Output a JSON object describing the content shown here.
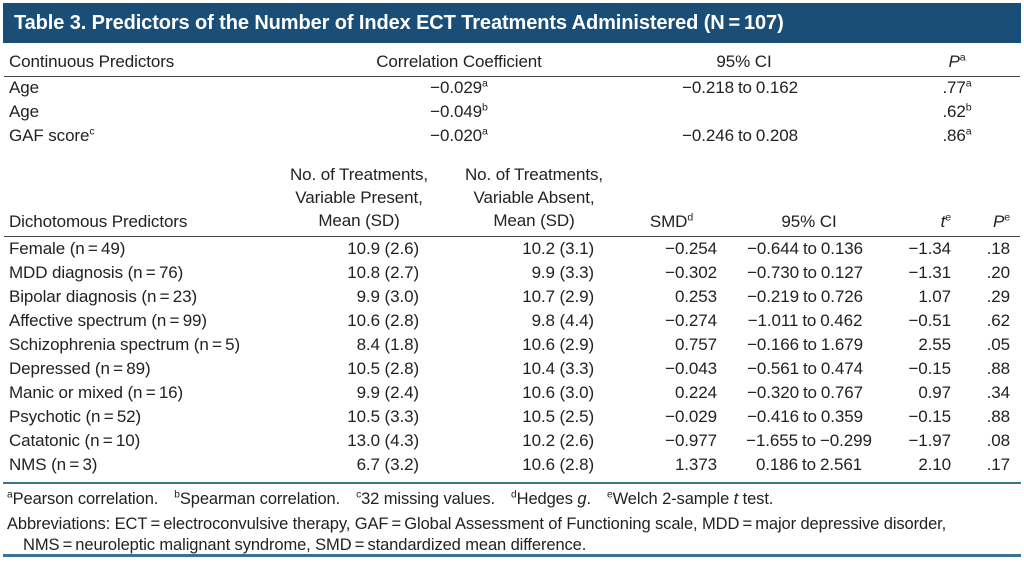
{
  "title": "Table 3. Predictors of the Number of Index ECT Treatments Administered (N = 107)",
  "colors": {
    "title_bg": "#1a4e77",
    "rule_blue": "#3a7391",
    "header_rule": "#454545"
  },
  "continuous": {
    "headers": {
      "predictor": "Continuous Predictors",
      "coef": "Correlation Coefficient",
      "ci": "95% CI",
      "p": "P",
      "p_sup": "a"
    },
    "rows": [
      {
        "predictor": "Age",
        "predictor_sup": "",
        "coef": "−0.029",
        "coef_sup": "a",
        "ci": "−0.218 to 0.162",
        "p": ".77",
        "p_sup": "a"
      },
      {
        "predictor": "Age",
        "predictor_sup": "",
        "coef": "−0.049",
        "coef_sup": "b",
        "ci": "",
        "p": ".62",
        "p_sup": "b"
      },
      {
        "predictor": "GAF score",
        "predictor_sup": "c",
        "coef": "−0.020",
        "coef_sup": "a",
        "ci": "−0.246 to 0.208",
        "p": ".86",
        "p_sup": "a"
      }
    ]
  },
  "dichotomous": {
    "headers": {
      "predictor": "Dichotomous Predictors",
      "present_lines": [
        "No. of Treatments,",
        "Variable Present,",
        "Mean (SD)"
      ],
      "absent_lines": [
        "No. of Treatments,",
        "Variable Absent,",
        "Mean (SD)"
      ],
      "smd": "SMD",
      "smd_sup": "d",
      "ci": "95% CI",
      "t": "t",
      "t_sup": "e",
      "p": "P",
      "p_sup": "e"
    },
    "rows": [
      {
        "predictor": "Female (n = 49)",
        "present": "10.9 (2.6)",
        "absent": "10.2 (3.1)",
        "smd": "−0.254",
        "ci": "−0.644 to 0.136",
        "t": "−1.34",
        "p": ".18"
      },
      {
        "predictor": "MDD diagnosis (n = 76)",
        "present": "10.8 (2.7)",
        "absent": "9.9 (3.3)",
        "smd": "−0.302",
        "ci": "−0.730 to 0.127",
        "t": "−1.31",
        "p": ".20"
      },
      {
        "predictor": "Bipolar diagnosis (n = 23)",
        "present": "9.9 (3.0)",
        "absent": "10.7 (2.9)",
        "smd": "0.253",
        "ci": "−0.219 to 0.726",
        "t": "1.07",
        "p": ".29"
      },
      {
        "predictor": "Affective spectrum (n = 99)",
        "present": "10.6 (2.8)",
        "absent": "9.8 (4.4)",
        "smd": "−0.274",
        "ci": "−1.011 to 0.462",
        "t": "−0.51",
        "p": ".62"
      },
      {
        "predictor": "Schizophrenia spectrum (n = 5)",
        "present": "8.4 (1.8)",
        "absent": "10.6 (2.9)",
        "smd": "0.757",
        "ci": "−0.166 to 1.679",
        "t": "2.55",
        "p": ".05"
      },
      {
        "predictor": "Depressed (n = 89)",
        "present": "10.5 (2.8)",
        "absent": "10.4 (3.3)",
        "smd": "−0.043",
        "ci": "−0.561 to 0.474",
        "t": "−0.15",
        "p": ".88"
      },
      {
        "predictor": "Manic or mixed (n = 16)",
        "present": "9.9 (2.4)",
        "absent": "10.6 (3.0)",
        "smd": "0.224",
        "ci": "−0.320 to 0.767",
        "t": "0.97",
        "p": ".34"
      },
      {
        "predictor": "Psychotic (n = 52)",
        "present": "10.5 (3.3)",
        "absent": "10.5 (2.5)",
        "smd": "−0.029",
        "ci": "−0.416 to 0.359",
        "t": "−0.15",
        "p": ".88"
      },
      {
        "predictor": "Catatonic (n = 10)",
        "present": "13.0 (4.3)",
        "absent": "10.2 (2.6)",
        "smd": "−0.977",
        "ci": "−1.655 to −0.299",
        "t": "−1.97",
        "p": ".08"
      },
      {
        "predictor": "NMS (n = 3)",
        "present": "6.7 (3.2)",
        "absent": "10.6 (2.8)",
        "smd": "1.373",
        "ci": "0.186 to 2.561",
        "t": "2.10",
        "p": ".17"
      }
    ]
  },
  "footnotes": [
    {
      "sup": "a",
      "pre": "Pearson correlation.",
      "italic": "",
      "post": ""
    },
    {
      "sup": "b",
      "pre": "Spearman correlation.",
      "italic": "",
      "post": ""
    },
    {
      "sup": "c",
      "pre": "32 missing values.",
      "italic": "",
      "post": ""
    },
    {
      "sup": "d",
      "pre": "Hedges ",
      "italic": "g",
      "post": "."
    },
    {
      "sup": "e",
      "pre": "Welch 2-sample ",
      "italic": "t",
      "post": " test."
    }
  ],
  "abbreviations": "Abbreviations: ECT = electroconvulsive therapy, GAF = Global Assessment of Functioning scale, MDD = major depressive disorder, NMS = neuroleptic malignant syndrome, SMD = standardized mean difference."
}
